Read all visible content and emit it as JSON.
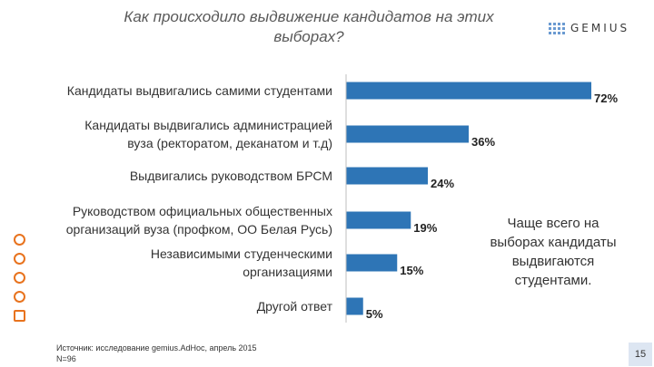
{
  "header": {
    "title_line1": "Как  происходило выдвижение кандидатов на этих",
    "title_line2": "выборах?",
    "logo_text": "GEMIUS"
  },
  "chart_data": {
    "type": "bar",
    "orientation": "horizontal",
    "title": "Как  происходило выдвижение кандидатов на этих выборах?",
    "categories": [
      [
        "Кандидаты выдвигались самими студентами"
      ],
      [
        "Кандидаты выдвигались администрацией",
        "вуза (ректоратом, деканатом и т.д)"
      ],
      [
        "Выдвигались руководством БРСМ"
      ],
      [
        "Руководством официальных общественных",
        "организаций вуза (профком, ОО Белая Русь)"
      ],
      [
        "Независимыми студенческими",
        "организациями"
      ],
      [
        "Другой ответ"
      ]
    ],
    "values": [
      72,
      36,
      24,
      19,
      15,
      5
    ],
    "value_labels": [
      "72%",
      "36%",
      "24%",
      "19%",
      "15%",
      "5%"
    ],
    "xlim": [
      0,
      72
    ],
    "bar_color": "#2e75b6"
  },
  "callout": {
    "lines": [
      "Чаще всего на",
      "выборах  кандидаты",
      "выдвигаются",
      "студентами."
    ]
  },
  "footer": {
    "source": "Источник: исследование gemius.AdHoc, апрель 2015",
    "sample": "N=96",
    "page_number": "15"
  }
}
